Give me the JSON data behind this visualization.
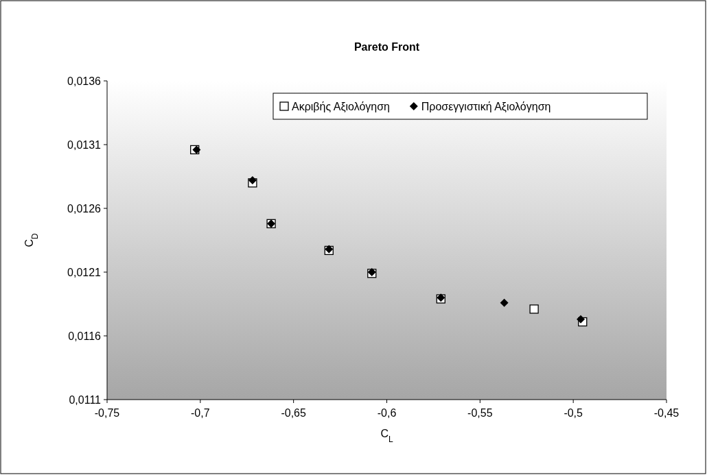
{
  "chart_data": {
    "type": "scatter",
    "title": "Pareto Front",
    "xlabel": "C$_{L}$",
    "ylabel": "C$_{D}$",
    "xlim": [
      -0.75,
      -0.45
    ],
    "xticks": [
      {
        "value": -0.75,
        "label": "-0,75"
      },
      {
        "value": -0.7,
        "label": "-0,7"
      },
      {
        "value": -0.65,
        "label": "-0,65"
      },
      {
        "value": -0.6,
        "label": "-0,6"
      },
      {
        "value": -0.55,
        "label": "-0,55"
      },
      {
        "value": -0.5,
        "label": "-0,5"
      },
      {
        "value": -0.45,
        "label": "-0,45"
      }
    ],
    "ylim": [
      0.0111,
      0.0136
    ],
    "yticks": [
      {
        "value": 0.0111,
        "label": "0,0111"
      },
      {
        "value": 0.0116,
        "label": "0,0116"
      },
      {
        "value": 0.0121,
        "label": "0,0121"
      },
      {
        "value": 0.0126,
        "label": "0,0126"
      },
      {
        "value": 0.0131,
        "label": "0,0131"
      },
      {
        "value": 0.0136,
        "label": "0,0136"
      }
    ],
    "grid": false,
    "legend": "top right",
    "series": [
      {
        "name": "Ακριβής Αξιολόγηση",
        "color": "#000000",
        "marker": "square",
        "x": [
          -0.703,
          -0.672,
          -0.662,
          -0.631,
          -0.608,
          -0.571,
          -0.521,
          -0.495
        ],
        "values": [
          0.01306,
          0.0128,
          0.01248,
          0.01227,
          0.01209,
          0.01189,
          0.01181,
          0.01171
        ]
      },
      {
        "name": "Προσεγγιστική Αξιολόγηση",
        "color": "#000000",
        "marker": "diamond",
        "x": [
          -0.702,
          -0.672,
          -0.662,
          -0.631,
          -0.608,
          -0.571,
          -0.537,
          -0.496
        ],
        "values": [
          0.01306,
          0.01282,
          0.01248,
          0.01228,
          0.0121,
          0.0119,
          0.01186,
          0.01173
        ]
      }
    ]
  }
}
